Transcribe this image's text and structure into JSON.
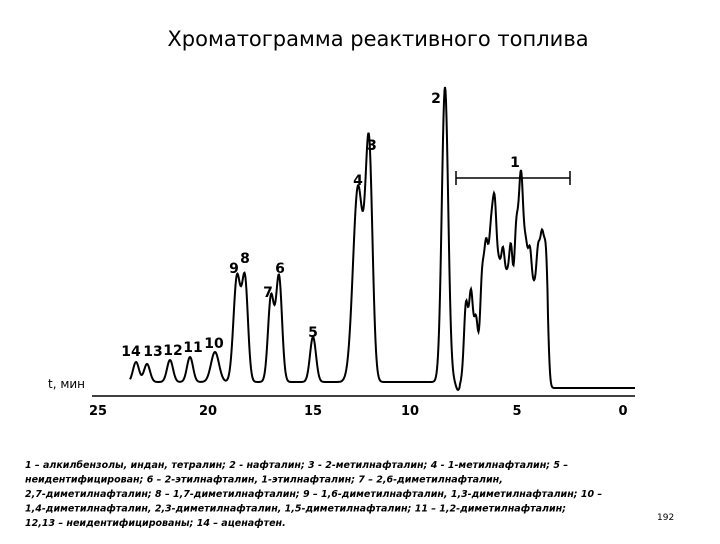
{
  "header": {
    "title": "Хроматограмма реактивного топлива"
  },
  "axis": {
    "label": "t, мин",
    "ticks": [
      "25",
      "20",
      "15",
      "10",
      "5",
      "0"
    ]
  },
  "peaks": [
    "14",
    "13",
    "12",
    "11",
    "10",
    "9",
    "8",
    "7",
    "6",
    "5",
    "4",
    "3",
    "2",
    "1"
  ],
  "caption": [
    "1 – алкилбензолы, индан, тетралин; 2 - нафталин; 3 - 2-метилнафталин; 4 - 1-метилнафталин; 5 –",
    "неидентифицирован; 6 – 2-этилнафталин, 1-этилнафталин;  7 – 2,6-диметилнафталин,",
    "2,7-диметилнафталин; 8 – 1,7-диметилнафталин; 9 – 1,6-диметилнафталин, 1,3-диметилнафталин; 10 –",
    "1,4-диметилнафталин,  2,3-диметилнафталин, 1,5-диметилнафталин; 11 – 1,2-диметилнафталин;",
    "12,13 – неидентифицированы; 14 – аценафтен."
  ],
  "page_number": "192"
}
